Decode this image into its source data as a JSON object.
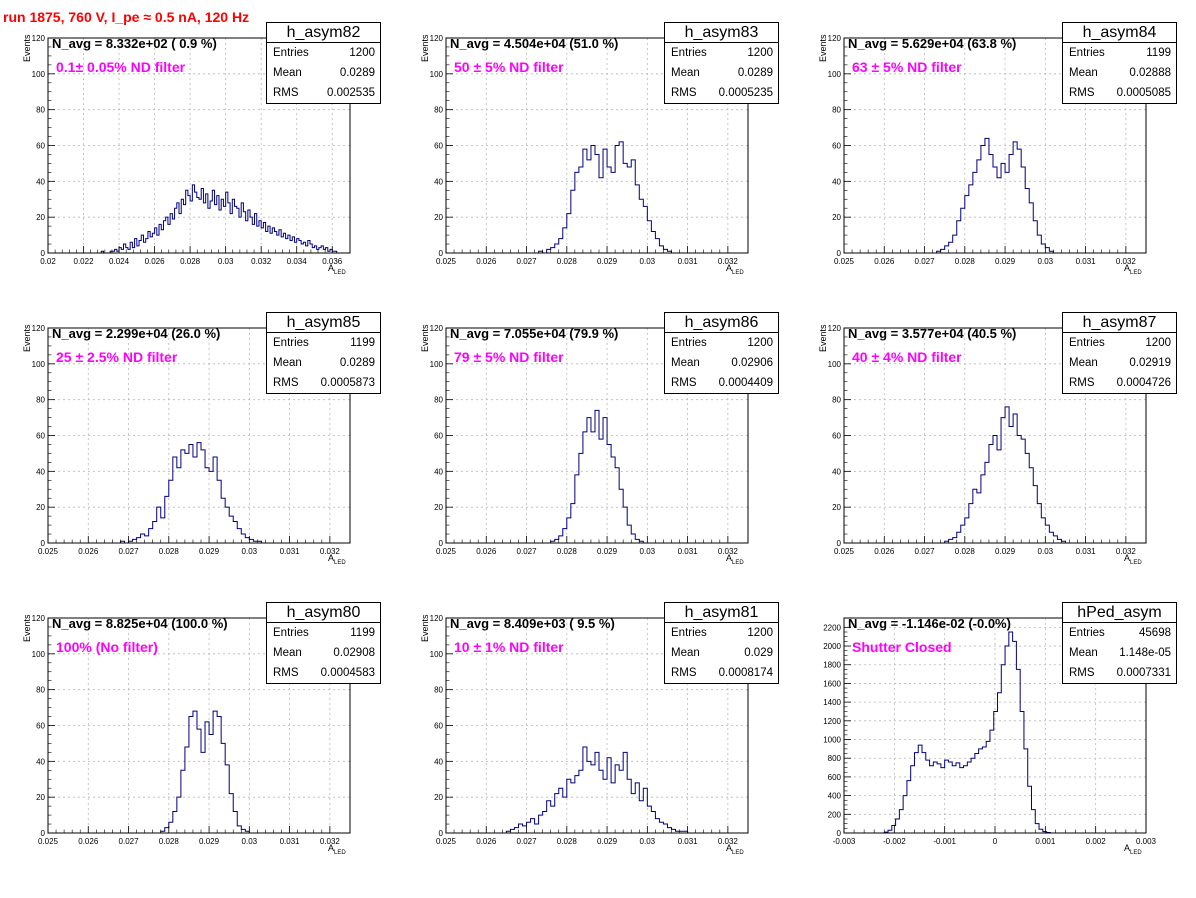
{
  "header": {
    "run_text": "run 1875,   760 V, I_pe ≈ 0.5 nA, 120 Hz"
  },
  "axis_labels": {
    "y": "Events",
    "x_main": "A",
    "x_sub": "LED"
  },
  "stat_labels": {
    "entries": "Entries",
    "mean": "Mean",
    "rms": "RMS"
  },
  "chart_data": [
    {
      "type": "histogram",
      "name": "h_asym82",
      "title": "",
      "xlabel": "A_LED",
      "ylabel": "Events",
      "n_avg": "N_avg = 8.332e+02 ( 0.9 %)",
      "filter": "0.1± 0.05% ND filter",
      "entries": "1200",
      "mean": "0.0289",
      "rms": "0.002535",
      "xlim": [
        0.02,
        0.037
      ],
      "ylim": [
        0,
        120
      ],
      "xticks": [
        0.02,
        0.022,
        0.024,
        0.026,
        0.028,
        0.03,
        0.032,
        0.034,
        0.036
      ],
      "xticklabels": [
        "0.02",
        "0.022",
        "0.024",
        "0.026",
        "0.028",
        "0.03",
        "0.032",
        "0.034",
        "0.036"
      ],
      "yticks": [
        0,
        20,
        40,
        60,
        80,
        100,
        120
      ],
      "yticklabels": [
        "0",
        "20",
        "40",
        "60",
        "80",
        "100",
        "120"
      ],
      "grid": true,
      "bin_edges": [
        0.02,
        0.037
      ],
      "counts": [
        0,
        0,
        0,
        0,
        0,
        0,
        0,
        0,
        0,
        0,
        0,
        0,
        0,
        0,
        0,
        0,
        0,
        0,
        0,
        0,
        0,
        0,
        0,
        0,
        1,
        0,
        0,
        0,
        1,
        1,
        2,
        1,
        3,
        2,
        5,
        3,
        2,
        6,
        3,
        8,
        4,
        7,
        10,
        6,
        8,
        12,
        9,
        11,
        14,
        10,
        16,
        13,
        18,
        20,
        16,
        22,
        19,
        25,
        28,
        22,
        30,
        27,
        35,
        32,
        29,
        38,
        34,
        31,
        30,
        36,
        28,
        33,
        25,
        29,
        35,
        27,
        32,
        24,
        30,
        26,
        34,
        28,
        22,
        30,
        26,
        25,
        20,
        28,
        23,
        18,
        24,
        20,
        16,
        22,
        15,
        18,
        14,
        17,
        12,
        15,
        11,
        14,
        12,
        10,
        13,
        9,
        11,
        8,
        10,
        7,
        9,
        6,
        8,
        7,
        5,
        6,
        4,
        7,
        5,
        3,
        4,
        2,
        3,
        4,
        2,
        3,
        1,
        2,
        1,
        1,
        0,
        0,
        0,
        0,
        0,
        0
      ]
    },
    {
      "type": "histogram",
      "name": "h_asym83",
      "title": "",
      "xlabel": "A_LED",
      "ylabel": "Events",
      "n_avg": "N_avg = 4.504e+04 (51.0 %)",
      "filter": "50 ± 5% ND filter",
      "entries": "1200",
      "mean": "0.0289",
      "rms": "0.0005235",
      "xlim": [
        0.025,
        0.0325
      ],
      "ylim": [
        0,
        120
      ],
      "xticks": [
        0.025,
        0.026,
        0.027,
        0.028,
        0.029,
        0.03,
        0.031,
        0.032
      ],
      "xticklabels": [
        "0.025",
        "0.026",
        "0.027",
        "0.028",
        "0.029",
        "0.03",
        "0.031",
        "0.032"
      ],
      "yticks": [
        0,
        20,
        40,
        60,
        80,
        100,
        120
      ],
      "yticklabels": [
        "0",
        "20",
        "40",
        "60",
        "80",
        "100",
        "120"
      ],
      "grid": true,
      "bin_edges": [
        0.027,
        0.0308
      ],
      "counts": [
        0,
        0,
        0,
        1,
        0,
        2,
        3,
        5,
        8,
        14,
        22,
        35,
        45,
        48,
        58,
        52,
        60,
        55,
        42,
        58,
        48,
        45,
        60,
        62,
        50,
        48,
        52,
        38,
        30,
        26,
        18,
        12,
        8,
        4,
        2,
        1,
        0,
        0
      ]
    },
    {
      "type": "histogram",
      "name": "h_asym84",
      "title": "",
      "xlabel": "A_LED",
      "ylabel": "Events",
      "n_avg": "N_avg = 5.629e+04 (63.8 %)",
      "filter": "63 ± 5% ND filter",
      "entries": "1199",
      "mean": "0.02888",
      "rms": "0.0005085",
      "xlim": [
        0.025,
        0.0325
      ],
      "ylim": [
        0,
        120
      ],
      "xticks": [
        0.025,
        0.026,
        0.027,
        0.028,
        0.029,
        0.03,
        0.031,
        0.032
      ],
      "xticklabels": [
        "0.025",
        "0.026",
        "0.027",
        "0.028",
        "0.029",
        "0.03",
        "0.031",
        "0.032"
      ],
      "yticks": [
        0,
        20,
        40,
        60,
        80,
        100,
        120
      ],
      "yticklabels": [
        "0",
        "20",
        "40",
        "60",
        "80",
        "100",
        "120"
      ],
      "grid": true,
      "bin_edges": [
        0.0272,
        0.0306
      ],
      "counts": [
        0,
        1,
        2,
        4,
        6,
        10,
        18,
        25,
        32,
        38,
        45,
        52,
        60,
        64,
        55,
        48,
        42,
        50,
        45,
        55,
        62,
        58,
        48,
        36,
        28,
        18,
        10,
        5,
        3,
        1,
        0,
        0,
        0,
        0
      ]
    },
    {
      "type": "histogram",
      "name": "h_asym85",
      "title": "",
      "xlabel": "A_LED",
      "ylabel": "Events",
      "n_avg": "N_avg = 2.299e+04 (26.0 %)",
      "filter": "25 ± 2.5% ND filter",
      "entries": "1199",
      "mean": "0.0289",
      "rms": "0.0005873",
      "xlim": [
        0.025,
        0.0325
      ],
      "ylim": [
        0,
        120
      ],
      "xticks": [
        0.025,
        0.026,
        0.027,
        0.028,
        0.029,
        0.03,
        0.031,
        0.032
      ],
      "xticklabels": [
        "0.025",
        "0.026",
        "0.027",
        "0.028",
        "0.029",
        "0.03",
        "0.031",
        "0.032"
      ],
      "yticks": [
        0,
        20,
        40,
        60,
        80,
        100,
        120
      ],
      "yticklabels": [
        "0",
        "20",
        "40",
        "60",
        "80",
        "100",
        "120"
      ],
      "grid": true,
      "bin_edges": [
        0.0268,
        0.031
      ],
      "counts": [
        1,
        0,
        1,
        2,
        3,
        5,
        4,
        8,
        12,
        20,
        14,
        26,
        35,
        48,
        42,
        52,
        50,
        55,
        48,
        56,
        52,
        42,
        40,
        48,
        35,
        25,
        20,
        15,
        12,
        8,
        5,
        3,
        2,
        1,
        1,
        0,
        0,
        0,
        0,
        0,
        0,
        0
      ]
    },
    {
      "type": "histogram",
      "name": "h_asym86",
      "title": "",
      "xlabel": "A_LED",
      "ylabel": "Events",
      "n_avg": "N_avg = 7.055e+04 (79.9 %)",
      "filter": "79 ± 5% ND filter",
      "entries": "1200",
      "mean": "0.02906",
      "rms": "0.0004409",
      "xlim": [
        0.025,
        0.0325
      ],
      "ylim": [
        0,
        120
      ],
      "xticks": [
        0.025,
        0.026,
        0.027,
        0.028,
        0.029,
        0.03,
        0.031,
        0.032
      ],
      "xticklabels": [
        "0.025",
        "0.026",
        "0.027",
        "0.028",
        "0.029",
        "0.03",
        "0.031",
        "0.032"
      ],
      "yticks": [
        0,
        20,
        40,
        60,
        80,
        100,
        120
      ],
      "yticklabels": [
        "0",
        "20",
        "40",
        "60",
        "80",
        "100",
        "120"
      ],
      "grid": true,
      "bin_edges": [
        0.0276,
        0.0304
      ],
      "counts": [
        1,
        2,
        4,
        8,
        14,
        22,
        38,
        50,
        62,
        70,
        62,
        74,
        58,
        70,
        55,
        48,
        42,
        30,
        20,
        10,
        5,
        2,
        1,
        0,
        0,
        0,
        0,
        0
      ]
    },
    {
      "type": "histogram",
      "name": "h_asym87",
      "title": "",
      "xlabel": "A_LED",
      "ylabel": "Events",
      "n_avg": "N_avg = 3.577e+04 (40.5 %)",
      "filter": "40 ± 4% ND filter",
      "entries": "1200",
      "mean": "0.02919",
      "rms": "0.0004726",
      "xlim": [
        0.025,
        0.0325
      ],
      "ylim": [
        0,
        120
      ],
      "xticks": [
        0.025,
        0.026,
        0.027,
        0.028,
        0.029,
        0.03,
        0.031,
        0.032
      ],
      "xticklabels": [
        "0.025",
        "0.026",
        "0.027",
        "0.028",
        "0.029",
        "0.03",
        "0.031",
        "0.032"
      ],
      "yticks": [
        0,
        20,
        40,
        60,
        80,
        100,
        120
      ],
      "yticklabels": [
        "0",
        "20",
        "40",
        "60",
        "80",
        "100",
        "120"
      ],
      "grid": true,
      "bin_edges": [
        0.0275,
        0.0309
      ],
      "counts": [
        1,
        2,
        3,
        6,
        10,
        14,
        22,
        30,
        28,
        38,
        45,
        55,
        60,
        52,
        70,
        76,
        65,
        72,
        60,
        58,
        50,
        42,
        32,
        22,
        14,
        10,
        6,
        4,
        2,
        1,
        0,
        0,
        0,
        0
      ]
    },
    {
      "type": "histogram",
      "name": "h_asym80",
      "title": "",
      "xlabel": "A_LED",
      "ylabel": "Events",
      "n_avg": "N_avg = 8.825e+04 (100.0 %)",
      "filter": "100% (No filter)",
      "entries": "1199",
      "mean": "0.02908",
      "rms": "0.0004583",
      "xlim": [
        0.025,
        0.0325
      ],
      "ylim": [
        0,
        120
      ],
      "xticks": [
        0.025,
        0.026,
        0.027,
        0.028,
        0.029,
        0.03,
        0.031,
        0.032
      ],
      "xticklabels": [
        "0.025",
        "0.026",
        "0.027",
        "0.028",
        "0.029",
        "0.03",
        "0.031",
        "0.032"
      ],
      "yticks": [
        0,
        20,
        40,
        60,
        80,
        100,
        120
      ],
      "yticklabels": [
        "0",
        "20",
        "40",
        "60",
        "80",
        "100",
        "120"
      ],
      "grid": true,
      "bin_edges": [
        0.0278,
        0.0304
      ],
      "counts": [
        1,
        3,
        6,
        12,
        20,
        35,
        48,
        65,
        68,
        58,
        45,
        62,
        55,
        68,
        65,
        50,
        38,
        22,
        12,
        4,
        2,
        1,
        0,
        0,
        0,
        0
      ]
    },
    {
      "type": "histogram",
      "name": "h_asym81",
      "title": "",
      "xlabel": "A_LED",
      "ylabel": "Events",
      "n_avg": "N_avg = 8.409e+03 ( 9.5 %)",
      "filter": "10 ± 1% ND filter",
      "entries": "1200",
      "mean": "0.029",
      "rms": "0.0008174",
      "xlim": [
        0.025,
        0.0325
      ],
      "ylim": [
        0,
        120
      ],
      "xticks": [
        0.025,
        0.026,
        0.027,
        0.028,
        0.029,
        0.03,
        0.031,
        0.032
      ],
      "xticklabels": [
        "0.025",
        "0.026",
        "0.027",
        "0.028",
        "0.029",
        "0.03",
        "0.031",
        "0.032"
      ],
      "yticks": [
        0,
        20,
        40,
        60,
        80,
        100,
        120
      ],
      "yticklabels": [
        "0",
        "20",
        "40",
        "60",
        "80",
        "100",
        "120"
      ],
      "grid": true,
      "bin_edges": [
        0.0264,
        0.0316
      ],
      "counts": [
        0,
        1,
        2,
        3,
        5,
        4,
        6,
        8,
        5,
        10,
        12,
        18,
        15,
        22,
        25,
        20,
        30,
        28,
        32,
        35,
        48,
        40,
        38,
        45,
        35,
        30,
        42,
        28,
        38,
        35,
        45,
        30,
        22,
        28,
        18,
        25,
        15,
        12,
        8,
        6,
        5,
        3,
        2,
        1,
        1,
        1,
        0,
        0,
        0,
        0,
        0,
        0
      ]
    },
    {
      "type": "histogram",
      "name": "hPed_asym",
      "title": "",
      "xlabel": "A_LED",
      "ylabel": "",
      "n_avg": "N_avg = -1.146e-02 (-0.0%)",
      "filter": "Shutter Closed",
      "entries": "45698",
      "mean": "1.148e-05",
      "rms": "0.0007331",
      "xlim": [
        -0.003,
        0.003
      ],
      "ylim": [
        0,
        2300
      ],
      "xticks": [
        -0.003,
        -0.002,
        -0.001,
        0,
        0.001,
        0.002,
        0.003
      ],
      "xticklabels": [
        "-0.003",
        "-0.002",
        "-0.001",
        "0",
        "0.001",
        "0.002",
        "0.003"
      ],
      "yticks": [
        0,
        200,
        400,
        600,
        800,
        1000,
        1200,
        1400,
        1600,
        1800,
        2000,
        2200
      ],
      "yticklabels": [
        "0",
        "200",
        "400",
        "600",
        "800",
        "1000",
        "1200",
        "1400",
        "1600",
        "1800",
        "2000",
        "2200"
      ],
      "grid": true,
      "bin_edges": [
        -0.0022,
        0.0014
      ],
      "counts": [
        10,
        30,
        80,
        150,
        250,
        400,
        560,
        720,
        860,
        940,
        860,
        780,
        720,
        760,
        740,
        700,
        780,
        760,
        720,
        750,
        700,
        720,
        760,
        800,
        850,
        900,
        920,
        980,
        1100,
        1300,
        1500,
        1800,
        2000,
        2150,
        2050,
        1750,
        1300,
        900,
        500,
        250,
        100,
        40,
        15,
        5,
        0,
        0,
        0,
        0
      ]
    }
  ]
}
